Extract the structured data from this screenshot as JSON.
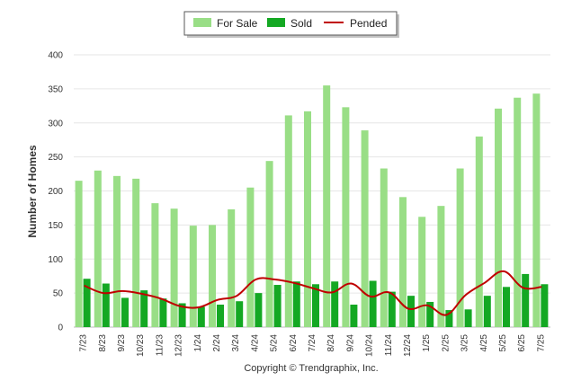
{
  "chart_data": {
    "type": "bar",
    "categories": [
      "7/23",
      "8/23",
      "9/23",
      "10/23",
      "11/23",
      "12/23",
      "1/24",
      "2/24",
      "3/24",
      "4/24",
      "5/24",
      "6/24",
      "7/24",
      "8/24",
      "9/24",
      "10/24",
      "11/24",
      "12/24",
      "1/25",
      "2/25",
      "3/25",
      "4/25",
      "5/25",
      "6/25",
      "7/25"
    ],
    "series": [
      {
        "name": "For Sale",
        "type": "bar",
        "color": "#99de86",
        "values": [
          215,
          230,
          222,
          218,
          182,
          174,
          149,
          150,
          173,
          205,
          244,
          311,
          317,
          355,
          323,
          289,
          233,
          191,
          162,
          178,
          233,
          280,
          321,
          337,
          343
        ]
      },
      {
        "name": "Sold",
        "type": "bar",
        "color": "#14a823",
        "values": [
          71,
          64,
          43,
          54,
          42,
          35,
          30,
          33,
          38,
          50,
          62,
          67,
          63,
          67,
          33,
          68,
          52,
          46,
          37,
          25,
          26,
          46,
          59,
          78,
          63
        ]
      },
      {
        "name": "Pended",
        "type": "line",
        "color": "#c00000",
        "values": [
          61,
          50,
          53,
          49,
          42,
          31,
          29,
          40,
          46,
          70,
          70,
          65,
          57,
          51,
          64,
          45,
          51,
          27,
          32,
          18,
          47,
          65,
          82,
          58,
          59
        ]
      }
    ],
    "ylabel": "Number of Homes",
    "xlabel": "",
    "ylim": [
      0,
      400
    ],
    "yticks": [
      0,
      50,
      100,
      150,
      200,
      250,
      300,
      350,
      400
    ],
    "grid": true,
    "legend_position": "top-center"
  },
  "footer": {
    "copyright": "Copyright © Trendgraphix, Inc."
  }
}
